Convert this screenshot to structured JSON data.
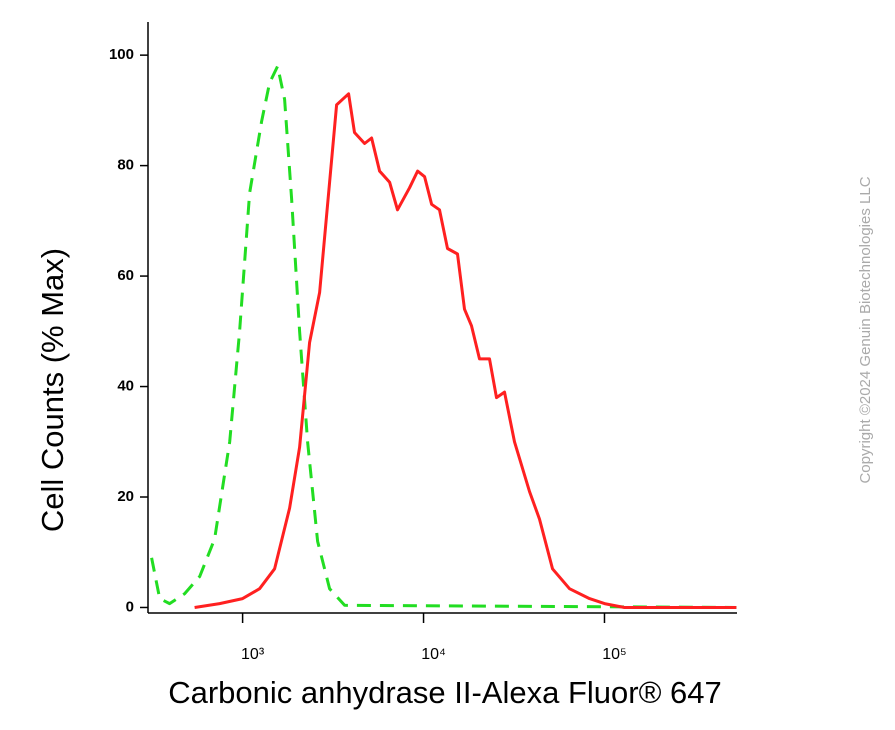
{
  "chart_data": {
    "type": "line",
    "x_label": "Carbonic anhydrase II-Alexa Fluor® 647",
    "y_label": "Cell Counts (% Max)",
    "watermark": "Copyright ©2024 Genuin Biotechnologies LLC",
    "xscale": "log",
    "xlim": [
      300,
      540000
    ],
    "ylim": [
      -1,
      106
    ],
    "xticks": [
      {
        "value": 1000,
        "label": "10³"
      },
      {
        "value": 10000,
        "label": "10⁴"
      },
      {
        "value": 100000,
        "label": "10⁵"
      }
    ],
    "yticks": [
      0,
      20,
      40,
      60,
      80,
      100
    ],
    "grid": false,
    "series": [
      {
        "color": "#22dd22",
        "dash": true,
        "x": [
          314,
          348,
          395,
          478,
          579,
          700,
          848,
          962,
          1093,
          1274,
          1410,
          1561,
          1707,
          1866,
          2065,
          2286,
          2596,
          3025,
          3661,
          536000
        ],
        "values": [
          9,
          1.6,
          0.7,
          2.5,
          5.6,
          12.4,
          30,
          50,
          75,
          88,
          95,
          98,
          92,
          74,
          50,
          30,
          12,
          3.4,
          0.4,
          0
        ]
      },
      {
        "color": "#ff2020",
        "dash": false,
        "x": [
          543,
          746,
          1000,
          1241,
          1502,
          1818,
          2065,
          2345,
          2663,
          3025,
          3306,
          3568,
          3852,
          4156,
          4721,
          5161,
          5713,
          6489,
          7183,
          8372,
          9268,
          10130,
          11080,
          12250,
          13570,
          15410,
          16850,
          18410,
          20380,
          23150,
          25310,
          28030,
          31820,
          38520,
          43740,
          51620,
          64090,
          82660,
          100000,
          128900,
          536000
        ],
        "values": [
          0,
          0.7,
          1.6,
          3.4,
          7,
          18,
          29,
          48,
          57,
          77,
          91,
          92,
          93,
          86,
          84,
          85,
          79,
          77,
          72,
          76,
          79,
          78,
          73,
          72,
          65,
          64,
          54,
          51,
          45,
          45,
          38,
          39,
          30,
          21,
          16,
          7,
          3.4,
          1.6,
          0.7,
          0,
          0
        ]
      }
    ]
  }
}
